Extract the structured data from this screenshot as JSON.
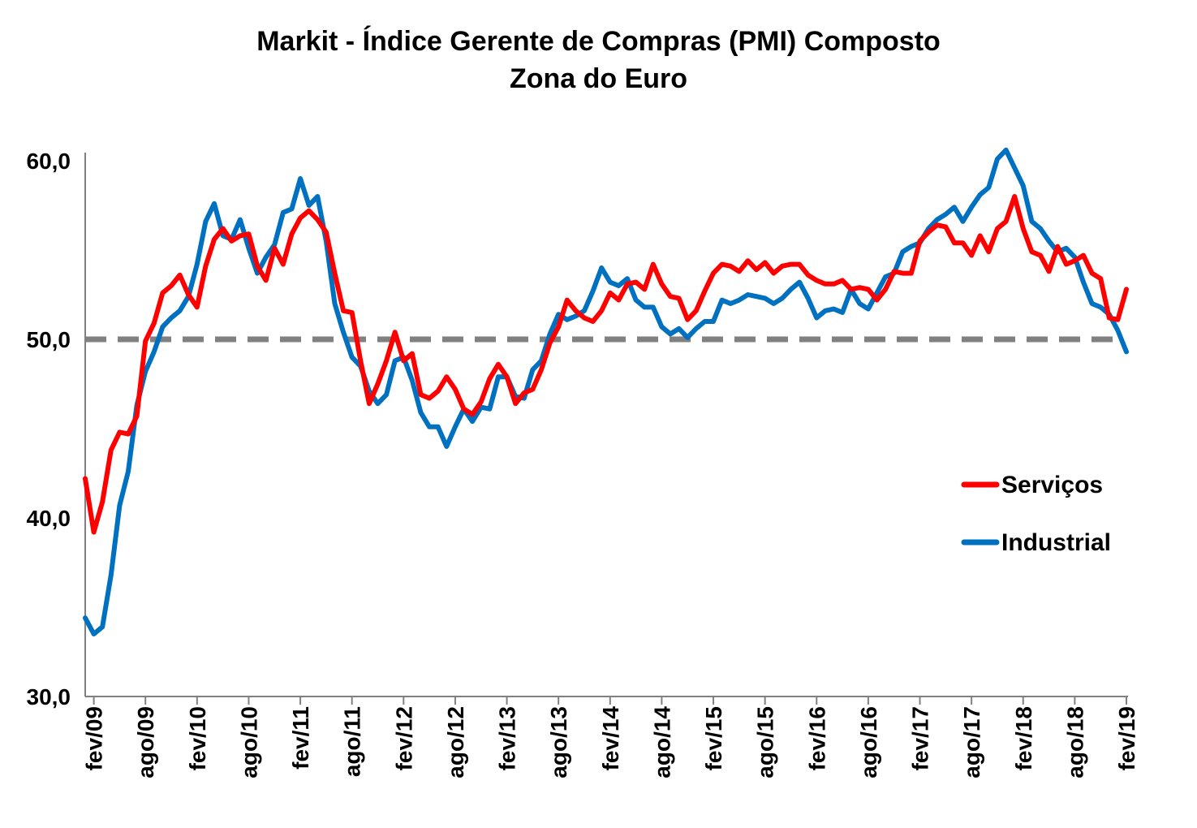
{
  "chart_data": {
    "type": "line",
    "title": "Markit - Índice Gerente de Compras (PMI) Composto",
    "subtitle": "Zona do Euro",
    "xlabel": "",
    "ylabel": "",
    "ylim": [
      30,
      60
    ],
    "yticks": [
      "30,0",
      "40,0",
      "50,0",
      "60,0"
    ],
    "ytick_values": [
      30,
      40,
      50,
      60
    ],
    "xtick_labels": [
      "fev/09",
      "ago/09",
      "fev/10",
      "ago/10",
      "fev/11",
      "ago/11",
      "fev/12",
      "ago/12",
      "fev/13",
      "ago/13",
      "fev/14",
      "ago/14",
      "fev/15",
      "ago/15",
      "fev/16",
      "ago/16",
      "fev/17",
      "ago/17",
      "fev/18",
      "ago/18",
      "fev/19"
    ],
    "start_month": "jan/09",
    "reference_line": 50,
    "legend_position": "right",
    "grid": false,
    "series": [
      {
        "name": "Serviços",
        "color": "#ff0000",
        "values": [
          42.2,
          39.2,
          40.9,
          43.8,
          44.8,
          44.7,
          45.7,
          49.9,
          50.9,
          52.6,
          53.0,
          53.6,
          52.5,
          51.8,
          54.1,
          55.6,
          56.2,
          55.5,
          55.8,
          55.9,
          54.1,
          53.3,
          55.1,
          54.2,
          55.9,
          56.8,
          57.2,
          56.7,
          56.0,
          53.7,
          51.6,
          51.5,
          48.8,
          46.4,
          47.5,
          48.8,
          50.4,
          48.8,
          49.2,
          46.9,
          46.7,
          47.1,
          47.9,
          47.2,
          46.1,
          45.8,
          46.5,
          47.8,
          48.6,
          47.9,
          46.4,
          47.0,
          47.2,
          48.3,
          49.8,
          50.7,
          52.2,
          51.6,
          51.2,
          51.0,
          51.6,
          52.6,
          52.2,
          53.1,
          53.2,
          52.8,
          54.2,
          53.1,
          52.4,
          52.3,
          51.1,
          51.6,
          52.7,
          53.7,
          54.2,
          54.1,
          53.8,
          54.4,
          53.9,
          54.3,
          53.7,
          54.1,
          54.2,
          54.2,
          53.6,
          53.3,
          53.1,
          53.1,
          53.3,
          52.8,
          52.9,
          52.8,
          52.2,
          52.8,
          53.8,
          53.7,
          53.7,
          55.5,
          56.0,
          56.4,
          56.3,
          55.4,
          55.4,
          54.7,
          55.8,
          54.9,
          56.2,
          56.6,
          58.0,
          56.2,
          54.9,
          54.7,
          53.8,
          55.2,
          54.2,
          54.4,
          54.7,
          53.7,
          53.4,
          51.2,
          51.1,
          52.8
        ]
      },
      {
        "name": "Industrial",
        "color": "#0070c0",
        "values": [
          34.4,
          33.5,
          33.9,
          36.8,
          40.7,
          42.6,
          46.3,
          48.2,
          49.3,
          50.7,
          51.2,
          51.6,
          52.4,
          54.2,
          56.6,
          57.6,
          55.8,
          55.6,
          56.7,
          55.1,
          53.7,
          54.6,
          55.3,
          57.1,
          57.3,
          59.0,
          57.5,
          58.0,
          55.5,
          52.0,
          50.4,
          49.0,
          48.5,
          47.1,
          46.4,
          46.9,
          48.8,
          49.0,
          47.7,
          45.9,
          45.1,
          45.1,
          44.0,
          45.1,
          46.1,
          45.4,
          46.2,
          46.1,
          47.9,
          47.9,
          46.8,
          46.7,
          48.3,
          48.8,
          50.3,
          51.4,
          51.1,
          51.3,
          51.6,
          52.7,
          54.0,
          53.2,
          53.0,
          53.4,
          52.2,
          51.8,
          51.8,
          50.7,
          50.3,
          50.6,
          50.1,
          50.6,
          51.0,
          51.0,
          52.2,
          52.0,
          52.2,
          52.5,
          52.4,
          52.3,
          52.0,
          52.3,
          52.8,
          53.2,
          52.3,
          51.2,
          51.6,
          51.7,
          51.5,
          52.8,
          52.0,
          51.7,
          52.6,
          53.5,
          53.7,
          54.9,
          55.2,
          55.4,
          56.2,
          56.7,
          57.0,
          57.4,
          56.6,
          57.4,
          58.1,
          58.5,
          60.1,
          60.6,
          59.6,
          58.6,
          56.6,
          56.2,
          55.5,
          54.9,
          55.1,
          54.6,
          53.2,
          52.0,
          51.8,
          51.4,
          50.5,
          49.3
        ]
      }
    ]
  }
}
